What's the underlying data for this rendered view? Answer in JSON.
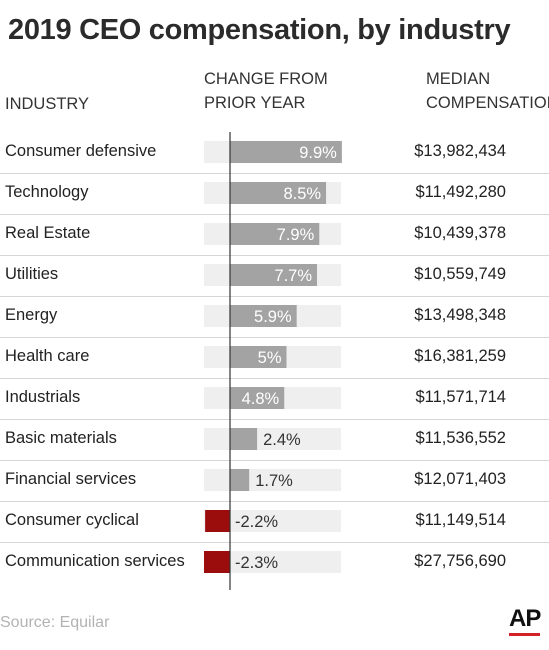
{
  "header": {
    "title": "2019 CEO compensation, by industry",
    "col_industry": "INDUSTRY",
    "col_change_line1": "CHANGE FROM",
    "col_change_line2": "PRIOR YEAR",
    "col_median_line1": "MEDIAN",
    "col_median_line2": "COMPENSATION"
  },
  "footer": {
    "source": "Source: Equilar",
    "logo": "AP"
  },
  "colors": {
    "positive_bar": "#a3a3a3",
    "negative_bar": "#9b0d0d",
    "track": "#efefef",
    "axis": "#333333",
    "logo_accent": "#d31f26"
  },
  "chart_data": {
    "type": "bar",
    "orientation": "horizontal",
    "title": "2019 CEO compensation, by industry",
    "categories": [
      "Consumer defensive",
      "Technology",
      "Real Estate",
      "Utilities",
      "Energy",
      "Health care",
      "Industrials",
      "Basic materials",
      "Financial services",
      "Consumer cyclical",
      "Communication services"
    ],
    "series": [
      {
        "name": "CHANGE FROM PRIOR YEAR",
        "values": [
          9.9,
          8.5,
          7.9,
          7.7,
          5.9,
          5,
          4.8,
          2.4,
          1.7,
          -2.2,
          -2.3
        ],
        "labels": [
          "9.9%",
          "8.5%",
          "7.9%",
          "7.7%",
          "5.9%",
          "5%",
          "4.8%",
          "2.4%",
          "1.7%",
          "-2.2%",
          "-2.3%"
        ]
      },
      {
        "name": "MEDIAN COMPENSATION",
        "labels": [
          "$13,982,434",
          "$11,492,280",
          "$10,439,378",
          "$10,559,749",
          "$13,498,348",
          "$16,381,259",
          "$11,571,714",
          "$11,536,552",
          "$12,071,403",
          "$11,149,514",
          "$27,756,690"
        ]
      }
    ],
    "xlim": [
      -2.3,
      9.9
    ],
    "source": "Source: Equilar"
  }
}
